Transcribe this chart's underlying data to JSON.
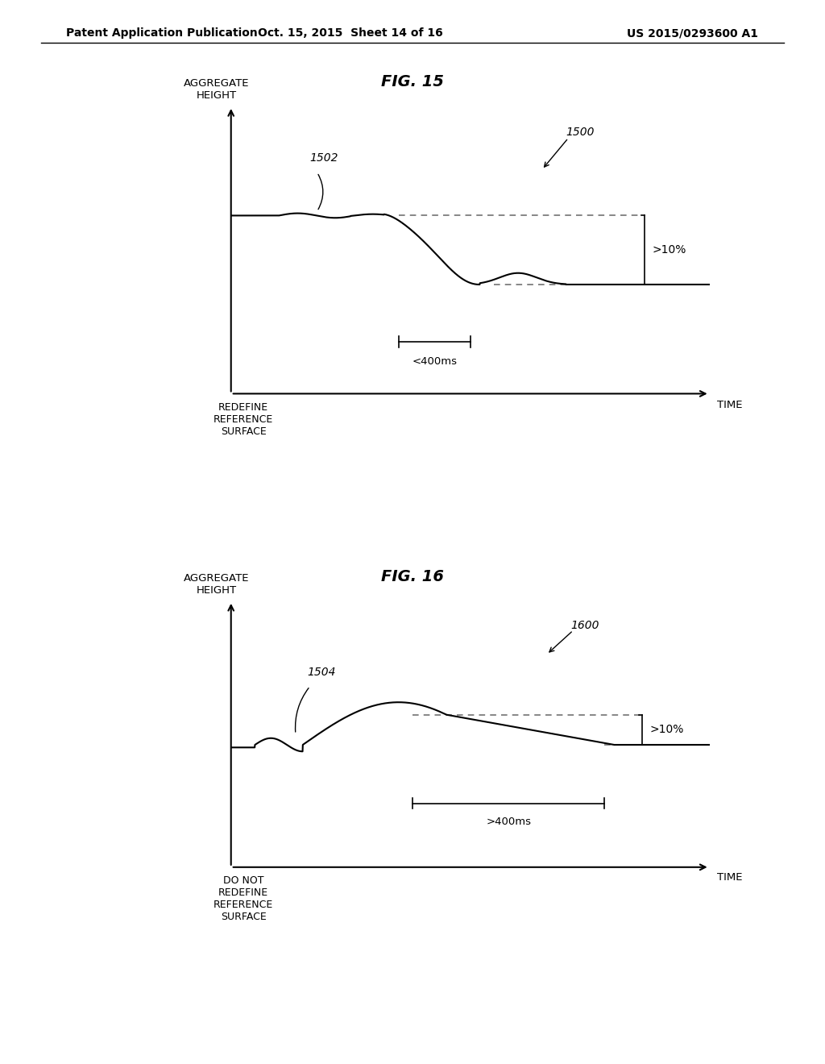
{
  "header_left": "Patent Application Publication",
  "header_mid": "Oct. 15, 2015  Sheet 14 of 16",
  "header_right": "US 2015/0293600 A1",
  "fig15_title": "FIG. 15",
  "fig16_title": "FIG. 16",
  "fig15_label": "1500",
  "fig15_curve_label": "1502",
  "fig15_time_label": "<400ms",
  "fig15_pct_label": ">10%",
  "fig15_x_label": "TIME",
  "fig15_y_label": "AGGREGATE\nHEIGHT",
  "fig15_bottom_label": "REDEFINE\nREFERENCE\nSURFACE",
  "fig16_label": "1600",
  "fig16_curve_label": "1504",
  "fig16_time_label": ">400ms",
  "fig16_pct_label": ">10%",
  "fig16_x_label": "TIME",
  "fig16_y_label": "AGGREGATE\nHEIGHT",
  "fig16_bottom_label": "DO NOT\nREDEFINE\nREFERENCE\nSURFACE",
  "bg_color": "#ffffff",
  "line_color": "#000000",
  "dashed_color": "#666666"
}
